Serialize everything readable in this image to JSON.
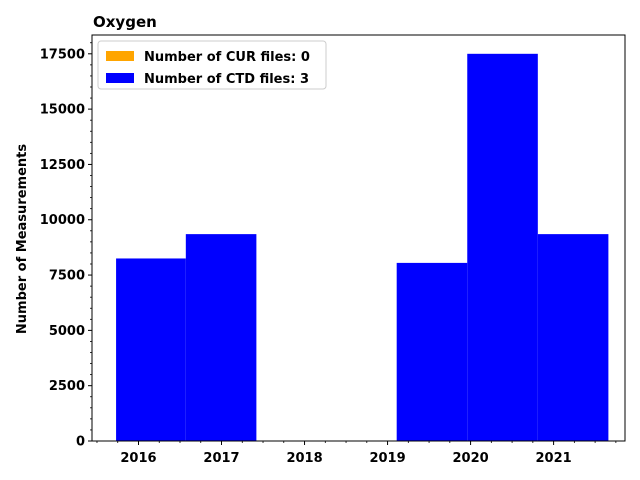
{
  "chart_data": {
    "type": "bar",
    "title": "Oxygen",
    "xlabel": "",
    "ylabel": "Number of Measurements",
    "x_tick_labels": [
      "2016",
      "2017",
      "2018",
      "2019",
      "2020",
      "2021"
    ],
    "y_tick_labels": [
      "0",
      "2500",
      "5000",
      "7500",
      "10000",
      "12500",
      "15000",
      "17500"
    ],
    "ylim": [
      0,
      18350
    ],
    "xlim": [
      2015.44,
      2021.86
    ],
    "series": [
      {
        "name": "Number of CUR files: 0",
        "color": "#ffa500",
        "bins": []
      },
      {
        "name": "Number of CTD files: 3",
        "color": "#0000ff",
        "bins": [
          {
            "start": 2015.73,
            "end": 2016.57,
            "value": 8250
          },
          {
            "start": 2016.57,
            "end": 2017.42,
            "value": 9350
          },
          {
            "start": 2017.42,
            "end": 2018.27,
            "value": 0
          },
          {
            "start": 2018.27,
            "end": 2019.11,
            "value": 0
          },
          {
            "start": 2019.11,
            "end": 2019.96,
            "value": 8050
          },
          {
            "start": 2019.96,
            "end": 2020.81,
            "value": 17500
          },
          {
            "start": 2020.81,
            "end": 2021.66,
            "value": 9350
          }
        ]
      }
    ],
    "legend_position": "upper-left",
    "grid": false
  }
}
